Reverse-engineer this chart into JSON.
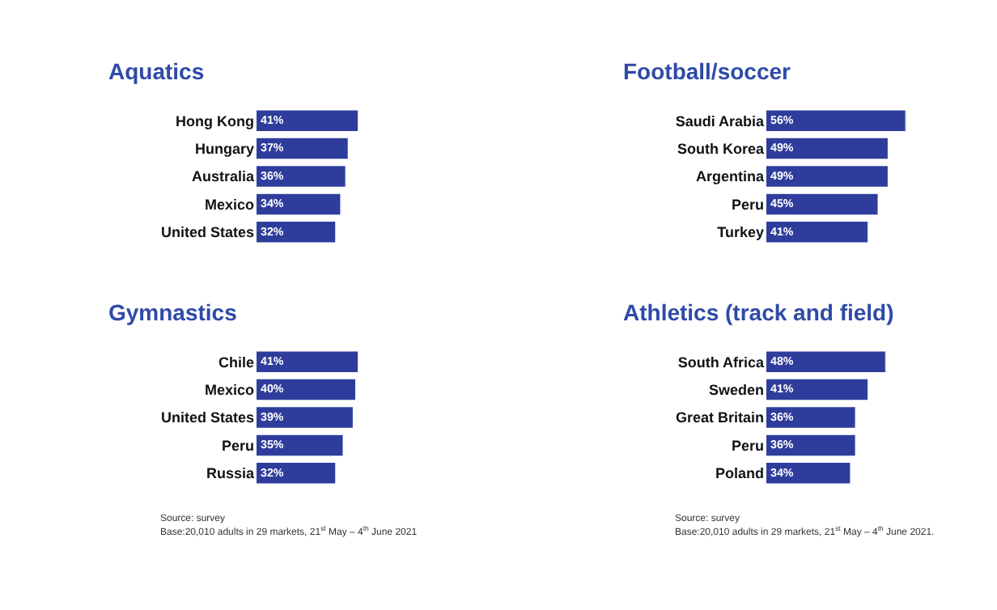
{
  "chart_data": [
    {
      "type": "bar",
      "orientation": "horizontal",
      "title": "Aquatics",
      "categories": [
        "Hong Kong",
        "Hungary",
        "Australia",
        "Mexico",
        "United States"
      ],
      "values": [
        41,
        37,
        36,
        34,
        32
      ],
      "value_labels": [
        "41%",
        "37%",
        "36%",
        "34%",
        "32%"
      ],
      "color": "#2e3d9c",
      "tick_labels": "y"
    },
    {
      "type": "bar",
      "orientation": "horizontal",
      "title": "Football/soccer",
      "categories": [
        "Saudi Arabia",
        "South Korea",
        "Argentina",
        "Peru",
        "Turkey"
      ],
      "values": [
        56,
        49,
        49,
        45,
        41
      ],
      "value_labels": [
        "56%",
        "49%",
        "49%",
        "45%",
        "41%"
      ],
      "color": "#2e3d9c",
      "tick_labels": "y"
    },
    {
      "type": "bar",
      "orientation": "horizontal",
      "title": "Gymnastics",
      "categories": [
        "Chile",
        "Mexico",
        "United States",
        "Peru",
        "Russia"
      ],
      "values": [
        41,
        40,
        39,
        35,
        32
      ],
      "value_labels": [
        "41%",
        "40%",
        "39%",
        "35%",
        "32%"
      ],
      "color": "#2e3d9c",
      "tick_labels": "y",
      "annotations": [
        "Source: survey",
        "Base:20,010 adults in 29 markets, 21$^{st}$ May – 4$^{th}$ June 2021"
      ]
    },
    {
      "type": "bar",
      "orientation": "horizontal",
      "title": "Athletics (track and field)",
      "categories": [
        "South Africa",
        "Sweden",
        "Great Britain",
        "Peru",
        "Poland"
      ],
      "values": [
        48,
        41,
        36,
        36,
        34
      ],
      "value_labels": [
        "48%",
        "41%",
        "36%",
        "36%",
        "34%"
      ],
      "color": "#2e3d9c",
      "tick_labels": "y",
      "annotations": [
        "Source: survey",
        "Base:20,010 adults in 29 markets, 21$^{st}$ May – 4$^{th}$ June 2021."
      ]
    }
  ]
}
